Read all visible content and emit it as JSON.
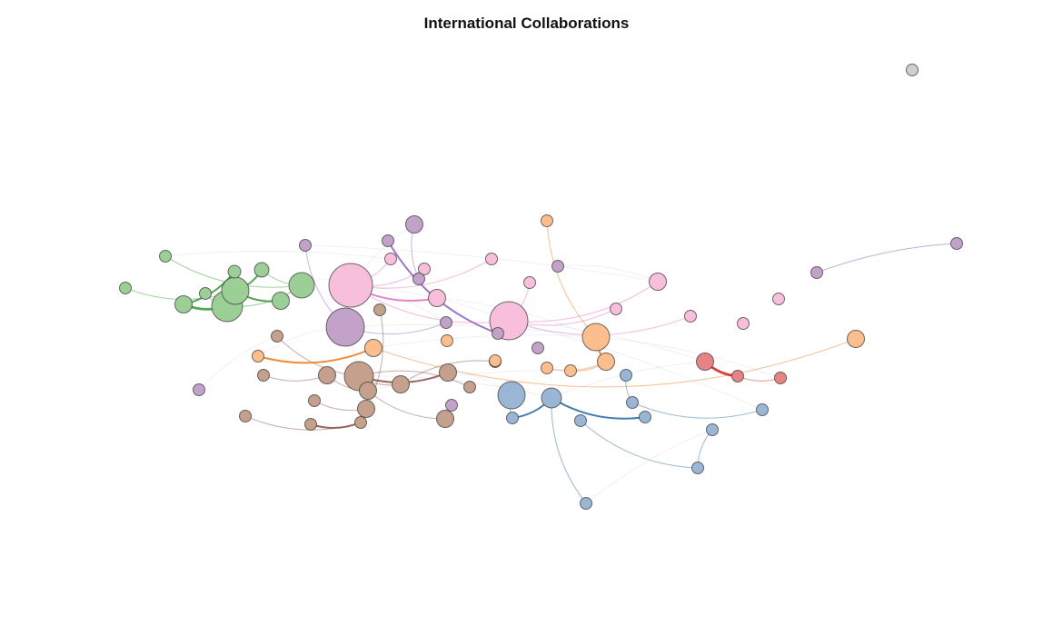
{
  "title": "International Collaborations",
  "palette": {
    "green": "#9ccf95",
    "pink": "#f7bfdc",
    "purple": "#c3a2ca",
    "brown": "#c4a08d",
    "orange": "#fcbe8c",
    "blue": "#99b7d5",
    "red": "#e98383",
    "grey": "#cfcfcf"
  },
  "edge_colors": {
    "green": "#3f9d3f",
    "pink": "#e377c2",
    "purple": "#9467bd",
    "brown": "#8c564b",
    "orange": "#ee7d21",
    "blue": "#2f6fa5",
    "red": "#d62728",
    "grey": "#999999"
  },
  "nodes": [
    {
      "id": "g1",
      "group": "green",
      "size": 1
    },
    {
      "id": "g2",
      "group": "green",
      "size": 1
    },
    {
      "id": "g3",
      "group": "green",
      "size": 1
    },
    {
      "id": "g4",
      "group": "green",
      "size": 2
    },
    {
      "id": "g5",
      "group": "green",
      "size": 1
    },
    {
      "id": "g6",
      "group": "green",
      "size": 3
    },
    {
      "id": "g7",
      "group": "green",
      "size": 3
    },
    {
      "id": "g8",
      "group": "green",
      "size": 3
    },
    {
      "id": "g9",
      "group": "green",
      "size": 2
    },
    {
      "id": "g10",
      "group": "green",
      "size": 3
    },
    {
      "id": "p1",
      "group": "pink",
      "size": 5
    },
    {
      "id": "p2",
      "group": "pink",
      "size": 5
    },
    {
      "id": "p3",
      "group": "pink",
      "size": 1
    },
    {
      "id": "p4",
      "group": "pink",
      "size": 1
    },
    {
      "id": "p5",
      "group": "pink",
      "size": 2
    },
    {
      "id": "p6",
      "group": "pink",
      "size": 1
    },
    {
      "id": "p7",
      "group": "pink",
      "size": 1
    },
    {
      "id": "p8",
      "group": "pink",
      "size": 1
    },
    {
      "id": "p9",
      "group": "pink",
      "size": 2
    },
    {
      "id": "p10",
      "group": "pink",
      "size": 1
    },
    {
      "id": "p11",
      "group": "pink",
      "size": 1
    },
    {
      "id": "p12",
      "group": "pink",
      "size": 1
    },
    {
      "id": "u1",
      "group": "purple",
      "size": 5
    },
    {
      "id": "u2",
      "group": "purple",
      "size": 2
    },
    {
      "id": "u3",
      "group": "purple",
      "size": 1
    },
    {
      "id": "u4",
      "group": "purple",
      "size": 1
    },
    {
      "id": "u5",
      "group": "purple",
      "size": 1
    },
    {
      "id": "u6",
      "group": "purple",
      "size": 1
    },
    {
      "id": "u7",
      "group": "purple",
      "size": 1
    },
    {
      "id": "u8",
      "group": "purple",
      "size": 1
    },
    {
      "id": "u9",
      "group": "purple",
      "size": 1
    },
    {
      "id": "u10",
      "group": "purple",
      "size": 1
    },
    {
      "id": "u11",
      "group": "purple",
      "size": 1
    },
    {
      "id": "u12",
      "group": "purple",
      "size": 1
    },
    {
      "id": "b1",
      "group": "brown",
      "size": 1
    },
    {
      "id": "b2",
      "group": "brown",
      "size": 1
    },
    {
      "id": "b3",
      "group": "brown",
      "size": 1
    },
    {
      "id": "b4",
      "group": "brown",
      "size": 1
    },
    {
      "id": "b5",
      "group": "brown",
      "size": 2
    },
    {
      "id": "b6",
      "group": "brown",
      "size": 3
    },
    {
      "id": "b7",
      "group": "brown",
      "size": 2
    },
    {
      "id": "b8",
      "group": "brown",
      "size": 2
    },
    {
      "id": "b9",
      "group": "brown",
      "size": 1
    },
    {
      "id": "b10",
      "group": "brown",
      "size": 2
    },
    {
      "id": "b11",
      "group": "brown",
      "size": 2
    },
    {
      "id": "b12",
      "group": "brown",
      "size": 1
    },
    {
      "id": "b13",
      "group": "brown",
      "size": 1
    },
    {
      "id": "b14",
      "group": "brown",
      "size": 1
    },
    {
      "id": "b15",
      "group": "brown",
      "size": 1
    },
    {
      "id": "b16",
      "group": "brown",
      "size": 2
    },
    {
      "id": "o1",
      "group": "orange",
      "size": 1
    },
    {
      "id": "o2",
      "group": "orange",
      "size": 1
    },
    {
      "id": "o3",
      "group": "orange",
      "size": 2
    },
    {
      "id": "o4",
      "group": "orange",
      "size": 1
    },
    {
      "id": "o5",
      "group": "orange",
      "size": 1
    },
    {
      "id": "o6",
      "group": "orange",
      "size": 1
    },
    {
      "id": "o7",
      "group": "orange",
      "size": 1
    },
    {
      "id": "o8",
      "group": "orange",
      "size": 3
    },
    {
      "id": "o9",
      "group": "orange",
      "size": 2
    },
    {
      "id": "o10",
      "group": "orange",
      "size": 2
    },
    {
      "id": "l1",
      "group": "blue",
      "size": 3
    },
    {
      "id": "l2",
      "group": "blue",
      "size": 1
    },
    {
      "id": "l3",
      "group": "blue",
      "size": 3
    },
    {
      "id": "l4",
      "group": "blue",
      "size": 1
    },
    {
      "id": "l5",
      "group": "blue",
      "size": 1
    },
    {
      "id": "l6",
      "group": "blue",
      "size": 1
    },
    {
      "id": "l7",
      "group": "blue",
      "size": 1
    },
    {
      "id": "l8",
      "group": "blue",
      "size": 1
    },
    {
      "id": "l9",
      "group": "blue",
      "size": 1
    },
    {
      "id": "l10",
      "group": "blue",
      "size": 1
    },
    {
      "id": "l11",
      "group": "blue",
      "size": 1
    },
    {
      "id": "r1",
      "group": "red",
      "size": 2
    },
    {
      "id": "r2",
      "group": "red",
      "size": 1
    },
    {
      "id": "r3",
      "group": "red",
      "size": 1
    },
    {
      "id": "x1",
      "group": "grey",
      "size": 1
    }
  ],
  "edges": [
    {
      "source": "g4",
      "target": "g7",
      "weight": 3
    },
    {
      "source": "g6",
      "target": "g8",
      "weight": 2
    },
    {
      "source": "g6",
      "target": "g9",
      "weight": 2
    },
    {
      "source": "g4",
      "target": "g5",
      "weight": 2
    },
    {
      "source": "g5",
      "target": "g7",
      "weight": 1
    },
    {
      "source": "g3",
      "target": "g7",
      "weight": 1
    },
    {
      "source": "g1",
      "target": "g6",
      "weight": 1
    },
    {
      "source": "g2",
      "target": "g10",
      "weight": 1
    },
    {
      "source": "g8",
      "target": "g10",
      "weight": 1
    },
    {
      "source": "g7",
      "target": "g10",
      "weight": 1
    },
    {
      "source": "p1",
      "target": "p5",
      "weight": 2
    },
    {
      "source": "p1",
      "target": "p3",
      "weight": 1
    },
    {
      "source": "p1",
      "target": "p4",
      "weight": 1
    },
    {
      "source": "p2",
      "target": "p7",
      "weight": 1
    },
    {
      "source": "p2",
      "target": "p9",
      "weight": 1
    },
    {
      "source": "p2",
      "target": "p8",
      "weight": 1
    },
    {
      "source": "p2",
      "target": "p10",
      "weight": 1
    },
    {
      "source": "p1",
      "target": "p6",
      "weight": 1
    },
    {
      "source": "p1",
      "target": "p2",
      "weight": 1
    },
    {
      "source": "u4",
      "target": "u8",
      "weight": 2
    },
    {
      "source": "u2",
      "target": "u5",
      "weight": 1
    },
    {
      "source": "u3",
      "target": "u1",
      "weight": 1
    },
    {
      "source": "u1",
      "target": "u7",
      "weight": 1
    },
    {
      "source": "b6",
      "target": "b11",
      "weight": 2
    },
    {
      "source": "b12",
      "target": "b9",
      "weight": 2
    },
    {
      "source": "b2",
      "target": "b5",
      "weight": 1
    },
    {
      "source": "b5",
      "target": "b7",
      "weight": 1
    },
    {
      "source": "b1",
      "target": "b6",
      "weight": 1
    },
    {
      "source": "b8",
      "target": "b13",
      "weight": 1
    },
    {
      "source": "b6",
      "target": "b10",
      "weight": 1
    },
    {
      "source": "b7",
      "target": "b16",
      "weight": 1
    },
    {
      "source": "b14",
      "target": "b6",
      "weight": 1
    },
    {
      "source": "b4",
      "target": "b9",
      "weight": 1
    },
    {
      "source": "b3",
      "target": "b8",
      "weight": 1
    },
    {
      "source": "b15",
      "target": "b10",
      "weight": 1
    },
    {
      "source": "o1",
      "target": "o3",
      "weight": 2
    },
    {
      "source": "o8",
      "target": "o9",
      "weight": 2
    },
    {
      "source": "o5",
      "target": "o9",
      "weight": 1
    },
    {
      "source": "o6",
      "target": "o9",
      "weight": 1
    },
    {
      "source": "o2",
      "target": "o8",
      "weight": 1
    },
    {
      "source": "o3",
      "target": "o10",
      "weight": 1
    },
    {
      "source": "l2",
      "target": "l3",
      "weight": 2
    },
    {
      "source": "l3",
      "target": "l6",
      "weight": 2
    },
    {
      "source": "l1",
      "target": "l2",
      "weight": 1
    },
    {
      "source": "l4",
      "target": "l5",
      "weight": 1
    },
    {
      "source": "l5",
      "target": "l7",
      "weight": 1
    },
    {
      "source": "l3",
      "target": "l11",
      "weight": 1
    },
    {
      "source": "l9",
      "target": "l10",
      "weight": 1
    },
    {
      "source": "l8",
      "target": "l10",
      "weight": 1
    },
    {
      "source": "r1",
      "target": "r2",
      "weight": 3
    },
    {
      "source": "r2",
      "target": "r3",
      "weight": 1
    }
  ]
}
